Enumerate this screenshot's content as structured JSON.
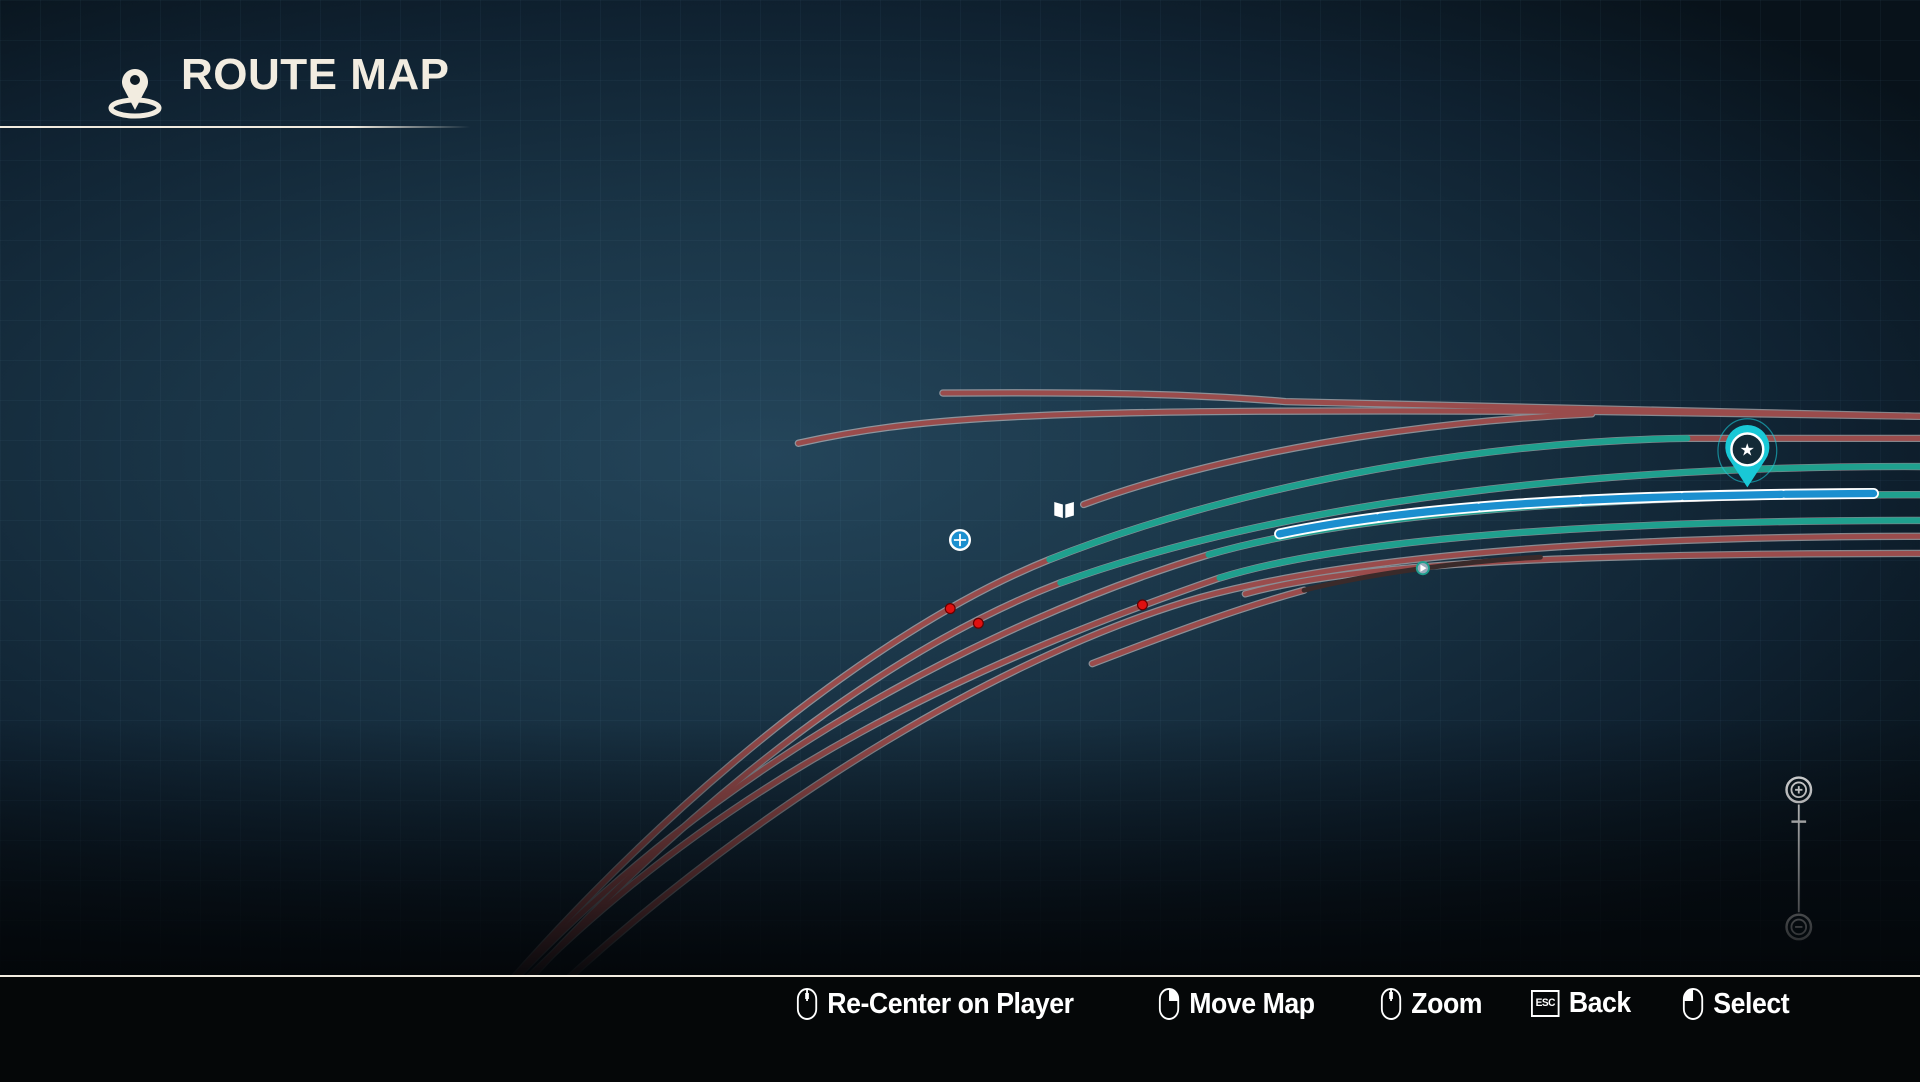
{
  "header": {
    "title": "ROUTE MAP",
    "icon": "map-pin-icon"
  },
  "footer": {
    "hints": [
      {
        "label": "Re-Center on Player",
        "icon": "mouse-middle-icon"
      },
      {
        "label": "Move Map",
        "icon": "mouse-right-icon"
      },
      {
        "label": "Zoom",
        "icon": "mouse-wheel-icon"
      },
      {
        "label": "Back",
        "key": "ESC"
      },
      {
        "label": "Select",
        "icon": "mouse-left-icon"
      }
    ]
  },
  "map": {
    "colors": {
      "track": "#a05252",
      "active_track": "#1fa08e",
      "train": "#1b8fcf",
      "player_marker": "#19c8d6",
      "signal": "#e01010"
    },
    "markers": [
      "player-marker",
      "book-icon",
      "globe-icon",
      "waypoint-arrow-icon"
    ],
    "zoom_controls": [
      "zoom-in",
      "zoom-out"
    ]
  }
}
